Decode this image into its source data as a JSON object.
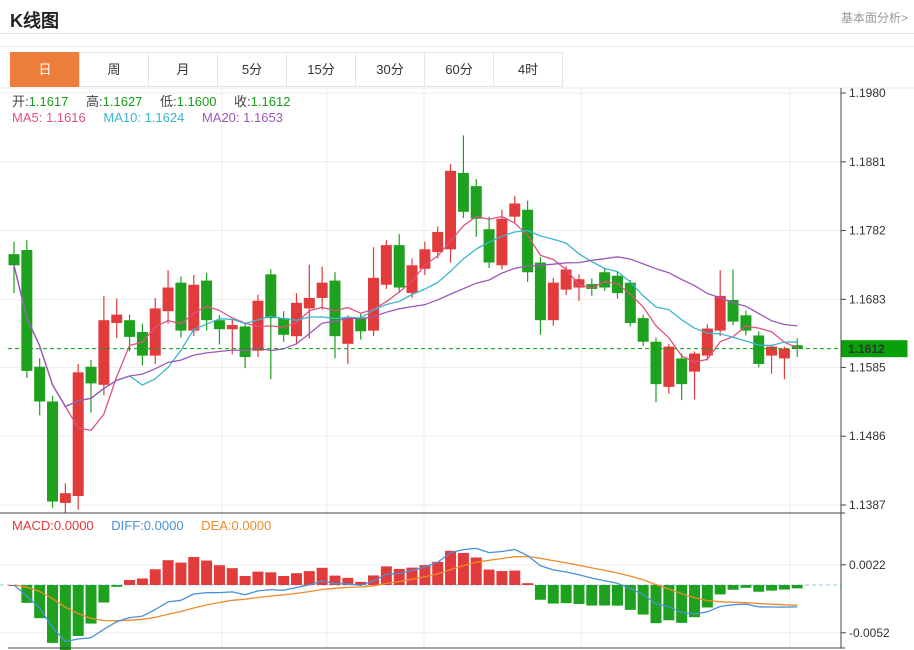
{
  "header": {
    "title": "K线图",
    "link_label": "基本面分析>"
  },
  "tabs": [
    {
      "label": "日",
      "active": true
    },
    {
      "label": "周",
      "active": false
    },
    {
      "label": "月",
      "active": false
    },
    {
      "label": "5分",
      "active": false
    },
    {
      "label": "15分",
      "active": false
    },
    {
      "label": "30分",
      "active": false
    },
    {
      "label": "60分",
      "active": false
    },
    {
      "label": "4时",
      "active": false
    }
  ],
  "ohlc": [
    {
      "label": "开:",
      "value": "1.1617"
    },
    {
      "label": "高:",
      "value": "1.1627"
    },
    {
      "label": "低:",
      "value": "1.1600"
    },
    {
      "label": "收:",
      "value": "1.1612"
    }
  ],
  "ma_legend": [
    {
      "label": "MA5:",
      "value": "1.1616",
      "color": "#e0527e"
    },
    {
      "label": "MA10:",
      "value": "1.1624",
      "color": "#3ab7cd"
    },
    {
      "label": "MA20:",
      "value": "1.1653",
      "color": "#9c59b8"
    }
  ],
  "macd_legend": [
    {
      "label": "MACD:",
      "value": "0.0000",
      "color": "#e23b3b"
    },
    {
      "label": "DIFF:",
      "value": "0.0000",
      "color": "#4a90d9"
    },
    {
      "label": "DEA:",
      "value": "0.0000",
      "color": "#ef8b2a"
    }
  ],
  "colors": {
    "up": "#e23b3b",
    "down": "#1ea11e",
    "badge": "#09a109",
    "price_line": "#0aa10a",
    "grid": "#ededed",
    "axis": "#444444",
    "zero_line": "#8ed2e4",
    "diff_line": "#4a90d9",
    "dea_line": "#ef8b2a",
    "tab_active": "#ed7d3a"
  },
  "chart_data": {
    "type": "candlestick+macd",
    "title": "K线图",
    "y_ticks": [
      "1.1980",
      "1.1881",
      "1.1782",
      "1.1683",
      "1.1585",
      "1.1486",
      "1.1387"
    ],
    "ylim": [
      1.1376,
      1.1992
    ],
    "current_price": 1.1612,
    "current_price_label": "1.1612",
    "x_gridlines": [
      222,
      327,
      424,
      581,
      790
    ],
    "ma_periods": [
      5,
      10,
      20
    ],
    "candles": [
      [
        1.1748,
        1.1766,
        1.1692,
        1.1732
      ],
      [
        1.1754,
        1.1768,
        1.157,
        1.158
      ],
      [
        1.1586,
        1.1598,
        1.1516,
        1.1536
      ],
      [
        1.1536,
        1.1544,
        1.1383,
        1.1392
      ],
      [
        1.139,
        1.1418,
        1.1376,
        1.1404
      ],
      [
        1.14,
        1.159,
        1.138,
        1.1578
      ],
      [
        1.1586,
        1.1596,
        1.152,
        1.1562
      ],
      [
        1.156,
        1.1688,
        1.1545,
        1.1653
      ],
      [
        1.1649,
        1.1684,
        1.1627,
        1.1661
      ],
      [
        1.1653,
        1.1661,
        1.1608,
        1.1629
      ],
      [
        1.1636,
        1.1648,
        1.1588,
        1.1602
      ],
      [
        1.1602,
        1.1685,
        1.159,
        1.167
      ],
      [
        1.1666,
        1.1725,
        1.1648,
        1.17
      ],
      [
        1.1707,
        1.1716,
        1.1628,
        1.1638
      ],
      [
        1.1638,
        1.1718,
        1.163,
        1.1704
      ],
      [
        1.171,
        1.1721,
        1.1638,
        1.1653
      ],
      [
        1.1653,
        1.166,
        1.1618,
        1.164
      ],
      [
        1.164,
        1.1656,
        1.1604,
        1.1646
      ],
      [
        1.1644,
        1.165,
        1.1584,
        1.16
      ],
      [
        1.1609,
        1.169,
        1.16,
        1.1681
      ],
      [
        1.1719,
        1.1726,
        1.1568,
        1.1656
      ],
      [
        1.1656,
        1.1666,
        1.1622,
        1.1632
      ],
      [
        1.163,
        1.1692,
        1.1618,
        1.1678
      ],
      [
        1.167,
        1.1733,
        1.1627,
        1.1685
      ],
      [
        1.1685,
        1.173,
        1.1668,
        1.1707
      ],
      [
        1.171,
        1.1722,
        1.1598,
        1.163
      ],
      [
        1.1619,
        1.166,
        1.159,
        1.1656
      ],
      [
        1.1656,
        1.1662,
        1.1625,
        1.1637
      ],
      [
        1.1638,
        1.1758,
        1.163,
        1.1714
      ],
      [
        1.1704,
        1.1768,
        1.1698,
        1.1761
      ],
      [
        1.1761,
        1.1777,
        1.1692,
        1.17
      ],
      [
        1.1692,
        1.1742,
        1.1685,
        1.1732
      ],
      [
        1.1727,
        1.1766,
        1.1718,
        1.1755
      ],
      [
        1.1751,
        1.1788,
        1.1742,
        1.178
      ],
      [
        1.1755,
        1.1878,
        1.1736,
        1.1868
      ],
      [
        1.1865,
        1.1919,
        1.18,
        1.1809
      ],
      [
        1.1846,
        1.1856,
        1.1773,
        1.1799
      ],
      [
        1.1784,
        1.1802,
        1.1728,
        1.1736
      ],
      [
        1.1732,
        1.1812,
        1.1726,
        1.1799
      ],
      [
        1.1802,
        1.1832,
        1.1794,
        1.1821
      ],
      [
        1.1812,
        1.1825,
        1.1708,
        1.1722
      ],
      [
        1.1736,
        1.1744,
        1.1632,
        1.1653
      ],
      [
        1.1653,
        1.1714,
        1.1645,
        1.1707
      ],
      [
        1.1697,
        1.1731,
        1.1689,
        1.1726
      ],
      [
        1.17,
        1.1719,
        1.1681,
        1.1712
      ],
      [
        1.1705,
        1.1713,
        1.1688,
        1.1698
      ],
      [
        1.1722,
        1.1727,
        1.1695,
        1.17
      ],
      [
        1.1717,
        1.1723,
        1.1684,
        1.1692
      ],
      [
        1.1707,
        1.1711,
        1.1644,
        1.1649
      ],
      [
        1.1656,
        1.1661,
        1.1616,
        1.1622
      ],
      [
        1.1622,
        1.1628,
        1.1535,
        1.1561
      ],
      [
        1.1557,
        1.1619,
        1.1547,
        1.1615
      ],
      [
        1.1598,
        1.1605,
        1.1538,
        1.1561
      ],
      [
        1.1579,
        1.1608,
        1.1539,
        1.1605
      ],
      [
        1.1602,
        1.1647,
        1.1595,
        1.1641
      ],
      [
        1.1638,
        1.1725,
        1.163,
        1.1688
      ],
      [
        1.1682,
        1.1726,
        1.1646,
        1.1651
      ],
      [
        1.166,
        1.1667,
        1.1631,
        1.1638
      ],
      [
        1.1631,
        1.1637,
        1.1585,
        1.159
      ],
      [
        1.1602,
        1.1618,
        1.1576,
        1.1615
      ],
      [
        1.1598,
        1.1615,
        1.1568,
        1.1612
      ],
      [
        1.1617,
        1.1627,
        1.16,
        1.1612
      ]
    ],
    "macd": {
      "ticks": [
        {
          "label": "0.0022",
          "value": 0.0022
        },
        {
          "label": "-0.0052",
          "value": -0.0052
        }
      ],
      "legend_values": {
        "macd": "0.0000",
        "diff": "0.0000",
        "dea": "0.0000"
      }
    }
  }
}
